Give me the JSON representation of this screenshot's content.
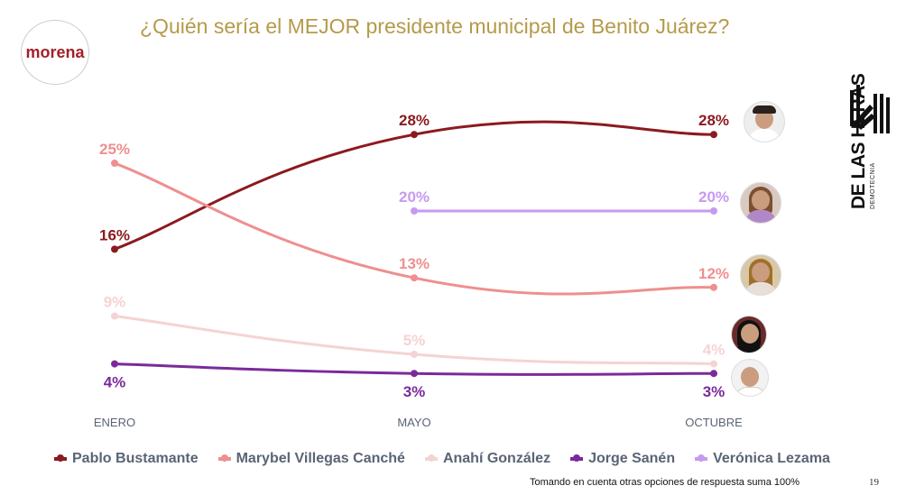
{
  "title": "¿Quién sería el MEJOR presidente municipal de Benito Juárez?",
  "logo_left": "morena",
  "brand": {
    "name": "DE LAS HERAS",
    "subtitle": "DEMOTECNIA"
  },
  "note": "Tomando en cuenta otras opciones de respuesta suma 100%",
  "page_number": "19",
  "chart_data": {
    "type": "line",
    "title": "¿Quién sería el MEJOR presidente municipal de Benito Juárez?",
    "categories": [
      "ENERO",
      "MAYO",
      "OCTUBRE"
    ],
    "ylim": [
      0,
      30
    ],
    "grid": false,
    "legend": "bottom",
    "unit": "%",
    "series": [
      {
        "name": "Pablo Bustamante",
        "color": "#8b1a1f",
        "values": [
          16,
          28,
          28
        ],
        "labels": [
          "16%",
          "28%",
          "28%"
        ]
      },
      {
        "name": "Marybel Villegas Canché",
        "color": "#ef8f8f",
        "values": [
          25,
          13,
          12
        ],
        "labels": [
          "25%",
          "13%",
          "12%"
        ]
      },
      {
        "name": "Anahí González",
        "color": "#f5d3d3",
        "values": [
          9,
          5,
          4
        ],
        "labels": [
          "9%",
          "5%",
          "4%"
        ]
      },
      {
        "name": "Jorge Sanén",
        "color": "#7b2a9b",
        "values": [
          4,
          3,
          3
        ],
        "labels": [
          "4%",
          "3%",
          "3%"
        ]
      },
      {
        "name": "Verónica Lezama",
        "color": "#c79af0",
        "values": [
          null,
          20,
          20
        ],
        "labels": [
          null,
          "20%",
          "20%"
        ]
      }
    ]
  }
}
